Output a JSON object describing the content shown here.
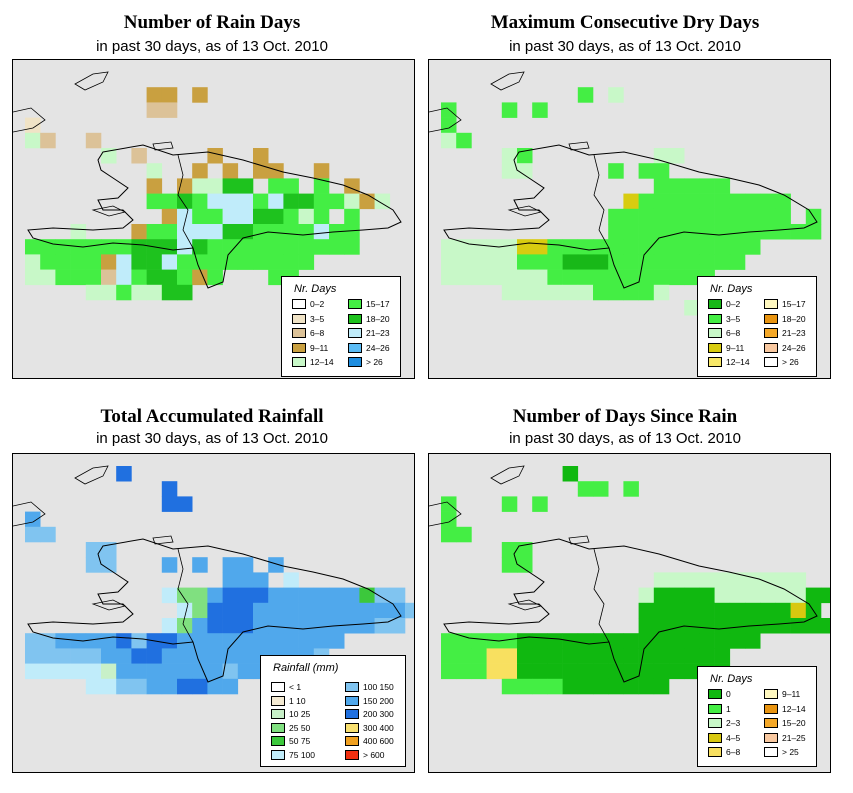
{
  "panels": [
    {
      "title": "Number of Rain Days",
      "subtitle": "in past 30 days, as of  13 Oct. 2010",
      "legend": {
        "title": "Nr. Days",
        "items": [
          {
            "label": "0–2",
            "color": "#ffffff"
          },
          {
            "label": "3–5",
            "color": "#f0e3c6"
          },
          {
            "label": "6–8",
            "color": "#dcc298"
          },
          {
            "label": "9–11",
            "color": "#c9a040"
          },
          {
            "label": "12–14",
            "color": "#c8f8c8"
          },
          {
            "label": "15–17",
            "color": "#44ee44"
          },
          {
            "label": "18–20",
            "color": "#1ec21e"
          },
          {
            "label": "21–23",
            "color": "#c0ecfa"
          },
          {
            "label": "24–26",
            "color": "#5bbcf5"
          },
          {
            "label": "> 26",
            "color": "#1e8ee0"
          }
        ]
      }
    },
    {
      "title": "Maximum Consecutive Dry Days",
      "subtitle": "in past 30 days, as of  13 Oct. 2010",
      "legend": {
        "title": "Nr. Days",
        "items": [
          {
            "label": "0–2",
            "color": "#18b818"
          },
          {
            "label": "3–5",
            "color": "#44ee44"
          },
          {
            "label": "6–8",
            "color": "#c8f8c8"
          },
          {
            "label": "9–11",
            "color": "#d8cc10"
          },
          {
            "label": "12–14",
            "color": "#f8e868"
          },
          {
            "label": "15–17",
            "color": "#fff8c0"
          },
          {
            "label": "18–20",
            "color": "#e89410"
          },
          {
            "label": "21–23",
            "color": "#f4a828"
          },
          {
            "label": "24–26",
            "color": "#f8c8a0"
          },
          {
            "label": "> 26",
            "color": "#ffffff"
          }
        ]
      }
    },
    {
      "title": "Total Accumulated Rainfall",
      "subtitle": "in past 30 days, as of  13 Oct. 2010",
      "legend": {
        "title": "Rainfall (mm)",
        "items": [
          {
            "label": "< 1",
            "color": "#ffffff"
          },
          {
            "label": "1    10",
            "color": "#f4ead2"
          },
          {
            "label": "10   25",
            "color": "#c8f0c8"
          },
          {
            "label": "25   50",
            "color": "#80e080"
          },
          {
            "label": "50   75",
            "color": "#3cc83c"
          },
          {
            "label": "75  100",
            "color": "#c0ecfa"
          },
          {
            "label": "100  150",
            "color": "#80c4f0"
          },
          {
            "label": "150  200",
            "color": "#50a8ec"
          },
          {
            "label": "200  300",
            "color": "#2070e0"
          },
          {
            "label": "300  400",
            "color": "#f8e070"
          },
          {
            "label": "400  600",
            "color": "#f0a020"
          },
          {
            "label": "> 600",
            "color": "#f03010"
          }
        ]
      }
    },
    {
      "title": "Number of Days Since Rain",
      "subtitle": "in past 30 days, as of  13 Oct. 2010",
      "legend": {
        "title": "Nr. Days",
        "items": [
          {
            "label": "0",
            "color": "#10b810"
          },
          {
            "label": "1",
            "color": "#44ee44"
          },
          {
            "label": "2–3",
            "color": "#c8f8c8"
          },
          {
            "label": "4–5",
            "color": "#d8c810"
          },
          {
            "label": "6–8",
            "color": "#f8e060"
          },
          {
            "label": "9–11",
            "color": "#fff8c0"
          },
          {
            "label": "12–14",
            "color": "#e89410"
          },
          {
            "label": "15–20",
            "color": "#f4a828"
          },
          {
            "label": "21–25",
            "color": "#f8c8a0"
          },
          {
            "label": "> 25",
            "color": "#ffffff"
          }
        ]
      }
    }
  ]
}
